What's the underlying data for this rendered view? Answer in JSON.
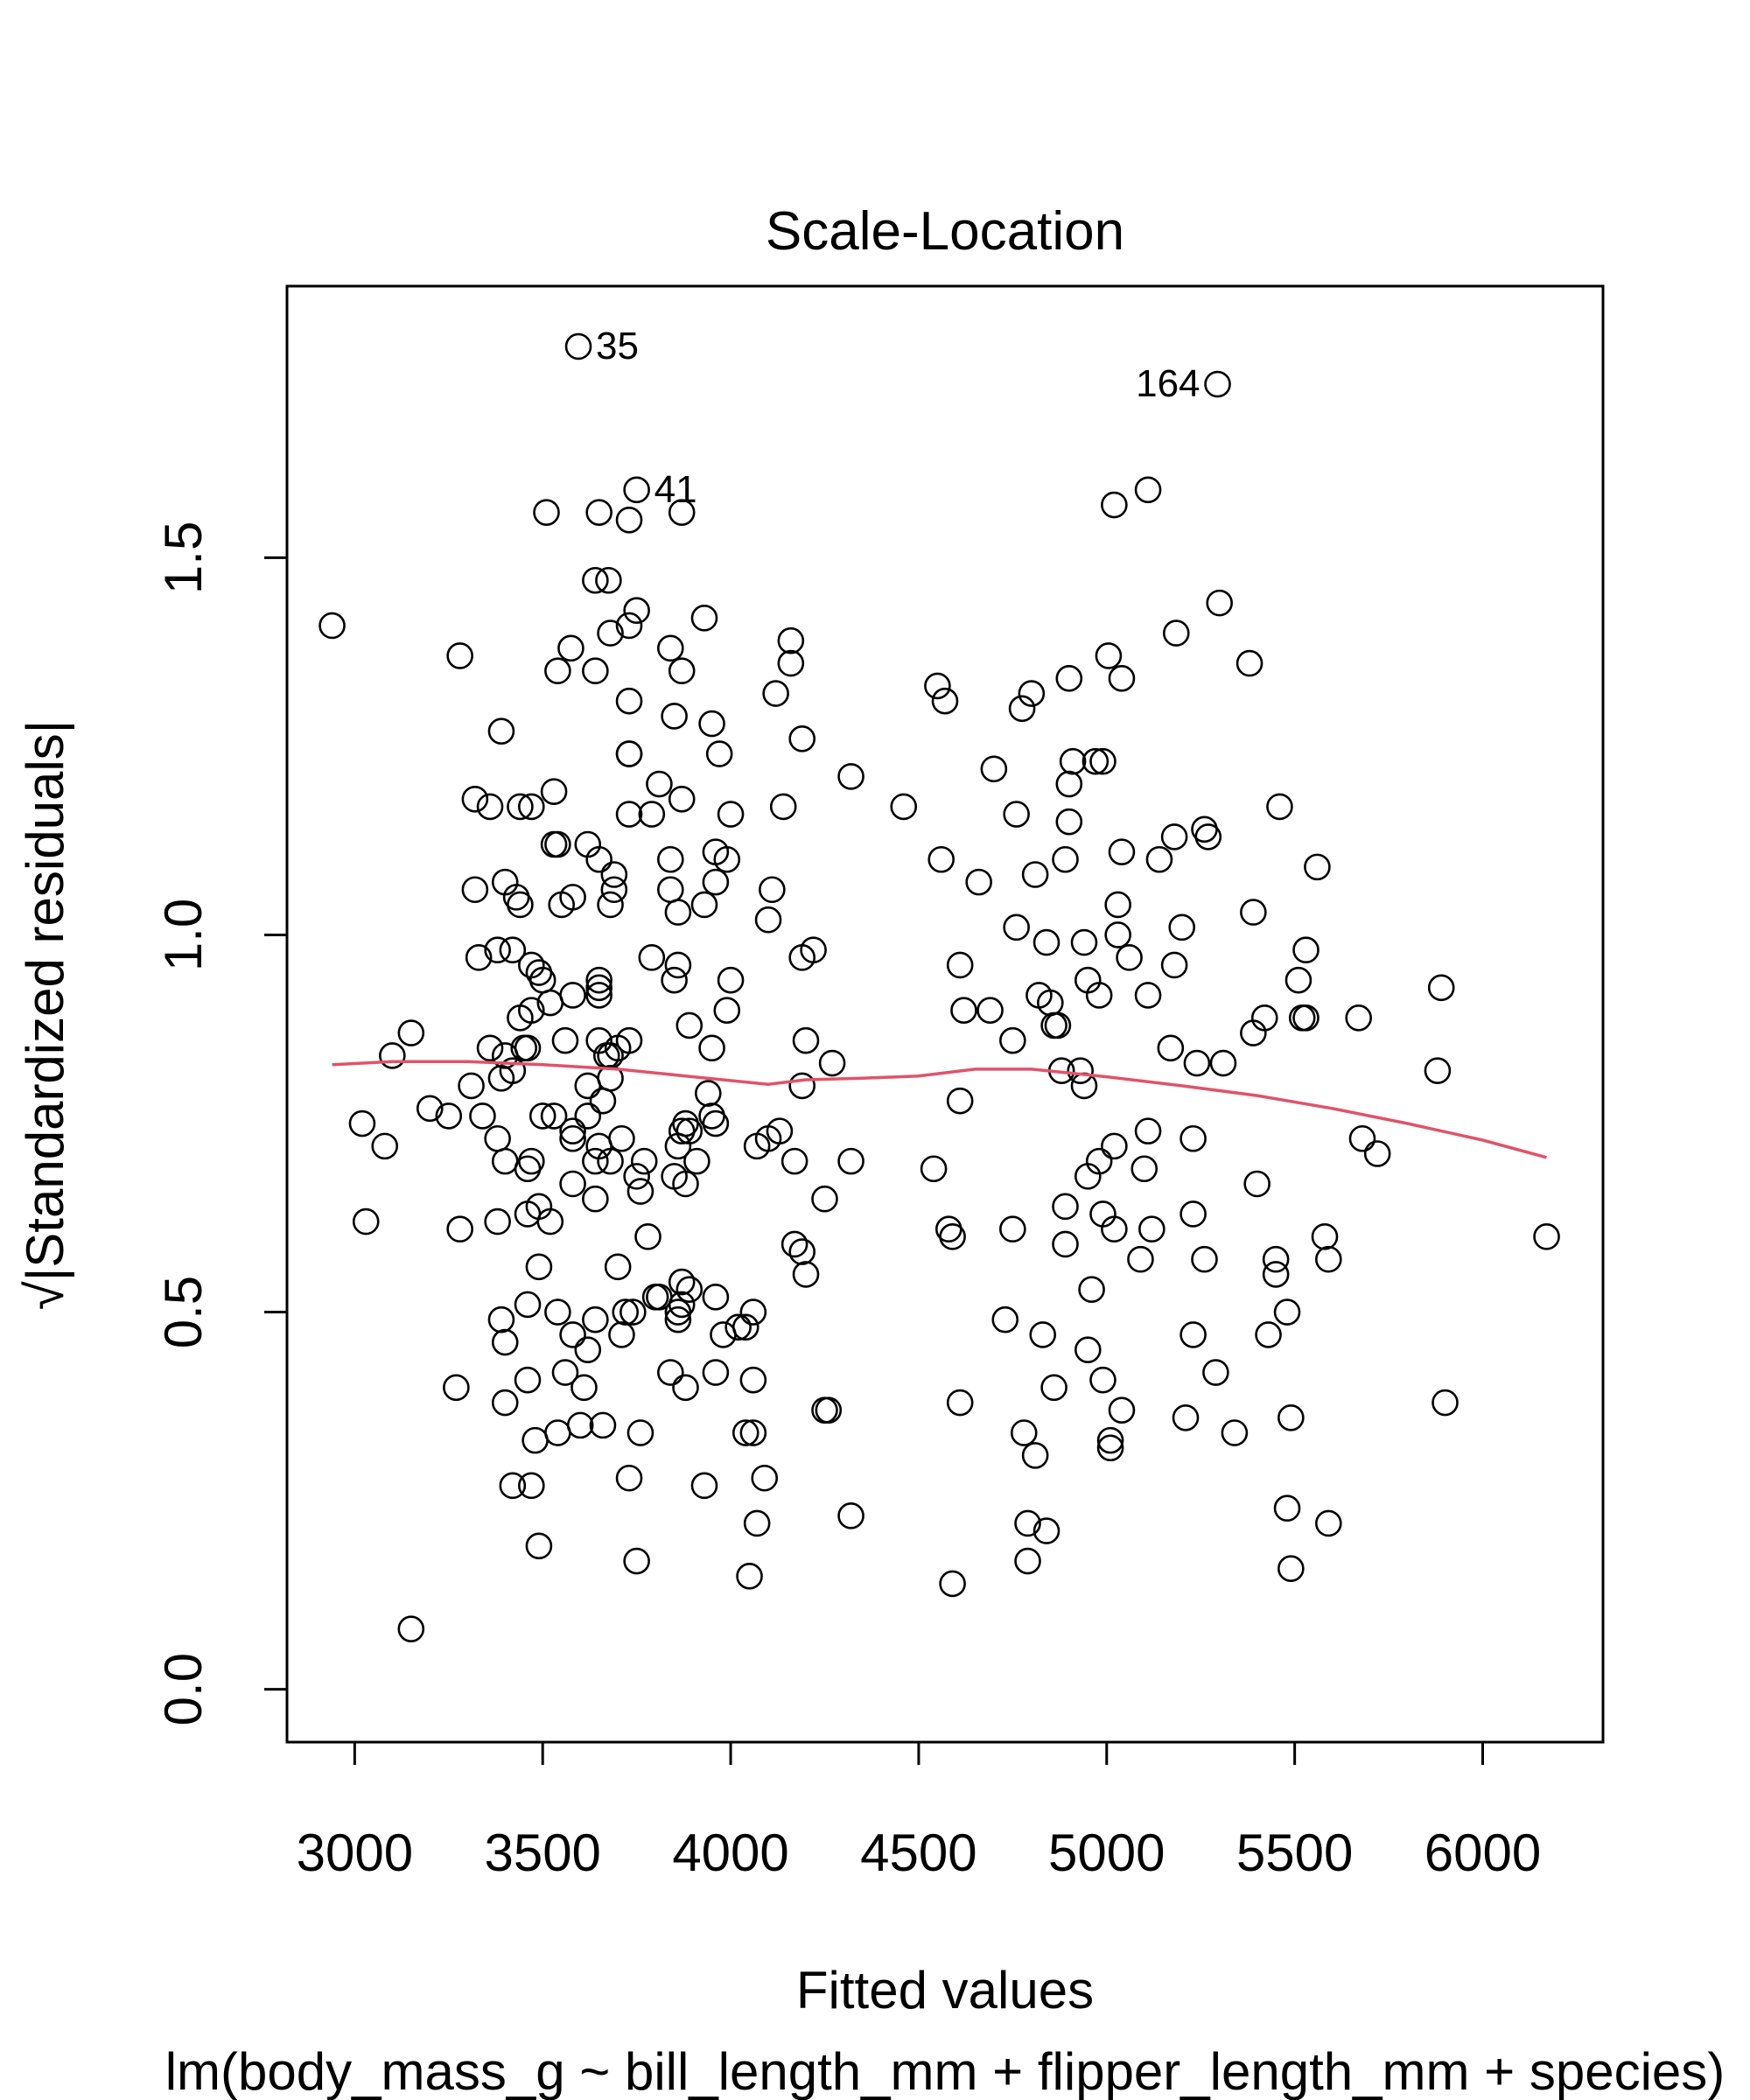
{
  "chart_data": {
    "type": "scatter",
    "title": "Scale-Location",
    "xlabel": "Fitted values",
    "ylabel": "√|Standardized residuals|",
    "subtitle": "lm(body_mass_g ~ bill_length_mm + flipper_length_mm + species)",
    "xlim": [
      2820,
      6320
    ],
    "ylim": [
      -0.07,
      1.86
    ],
    "xticks": [
      3000,
      3500,
      4000,
      4500,
      5000,
      5500,
      6000
    ],
    "yticks": [
      0.0,
      0.5,
      1.0,
      1.5
    ],
    "xtick_labels": [
      "3000",
      "3500",
      "4000",
      "4500",
      "5000",
      "5500",
      "6000"
    ],
    "ytick_labels": [
      "0.0",
      "0.5",
      "1.0",
      "1.5"
    ],
    "grid": false,
    "colors": {
      "points": "#000000",
      "smooth": "#DF536B"
    },
    "annotations": [
      {
        "label": "35",
        "x": 3595,
        "y": 1.78,
        "side": "right"
      },
      {
        "label": "164",
        "x": 5295,
        "y": 1.73,
        "side": "left"
      },
      {
        "label": "41",
        "x": 3750,
        "y": 1.59,
        "side": "right"
      }
    ],
    "smooth": [
      [
        2940,
        0.828
      ],
      [
        3100,
        0.832
      ],
      [
        3300,
        0.832
      ],
      [
        3500,
        0.828
      ],
      [
        3700,
        0.822
      ],
      [
        3900,
        0.812
      ],
      [
        4100,
        0.802
      ],
      [
        4200,
        0.808
      ],
      [
        4350,
        0.81
      ],
      [
        4500,
        0.813
      ],
      [
        4650,
        0.822
      ],
      [
        4800,
        0.822
      ],
      [
        5000,
        0.812
      ],
      [
        5200,
        0.8
      ],
      [
        5400,
        0.787
      ],
      [
        5600,
        0.77
      ],
      [
        5800,
        0.75
      ],
      [
        6000,
        0.728
      ],
      [
        6170,
        0.705
      ]
    ],
    "points": [
      [
        3595,
        1.78
      ],
      [
        5295,
        1.73
      ],
      [
        3750,
        1.59
      ],
      [
        5110,
        1.59
      ],
      [
        3510,
        1.56
      ],
      [
        3650,
        1.56
      ],
      [
        3730,
        1.55
      ],
      [
        3870,
        1.56
      ],
      [
        5020,
        1.57
      ],
      [
        2940,
        1.41
      ],
      [
        3640,
        1.47
      ],
      [
        3675,
        1.47
      ],
      [
        3750,
        1.43
      ],
      [
        3730,
        1.41
      ],
      [
        3680,
        1.4
      ],
      [
        3930,
        1.42
      ],
      [
        5300,
        1.44
      ],
      [
        5185,
        1.4
      ],
      [
        3280,
        1.37
      ],
      [
        3540,
        1.35
      ],
      [
        3640,
        1.35
      ],
      [
        3575,
        1.38
      ],
      [
        3840,
        1.38
      ],
      [
        3870,
        1.35
      ],
      [
        4160,
        1.39
      ],
      [
        4160,
        1.36
      ],
      [
        5005,
        1.37
      ],
      [
        5380,
        1.36
      ],
      [
        4550,
        1.33
      ],
      [
        4570,
        1.31
      ],
      [
        4800,
        1.32
      ],
      [
        4775,
        1.3
      ],
      [
        4900,
        1.34
      ],
      [
        5040,
        1.34
      ],
      [
        3730,
        1.31
      ],
      [
        3850,
        1.29
      ],
      [
        3950,
        1.28
      ],
      [
        4120,
        1.32
      ],
      [
        3390,
        1.27
      ],
      [
        3730,
        1.24
      ],
      [
        3730,
        1.24
      ],
      [
        3970,
        1.24
      ],
      [
        4190,
        1.26
      ],
      [
        4320,
        1.21
      ],
      [
        4700,
        1.22
      ],
      [
        4900,
        1.2
      ],
      [
        4910,
        1.23
      ],
      [
        4970,
        1.23
      ],
      [
        4990,
        1.23
      ],
      [
        3320,
        1.18
      ],
      [
        3360,
        1.17
      ],
      [
        3440,
        1.17
      ],
      [
        3470,
        1.17
      ],
      [
        3530,
        1.19
      ],
      [
        3730,
        1.16
      ],
      [
        3790,
        1.16
      ],
      [
        3810,
        1.2
      ],
      [
        3870,
        1.18
      ],
      [
        4000,
        1.16
      ],
      [
        4140,
        1.17
      ],
      [
        4460,
        1.17
      ],
      [
        4760,
        1.16
      ],
      [
        4900,
        1.15
      ],
      [
        5460,
        1.17
      ],
      [
        3530,
        1.12
      ],
      [
        3540,
        1.12
      ],
      [
        3620,
        1.12
      ],
      [
        3650,
        1.1
      ],
      [
        3690,
        1.08
      ],
      [
        3840,
        1.1
      ],
      [
        3960,
        1.11
      ],
      [
        3990,
        1.1
      ],
      [
        4560,
        1.1
      ],
      [
        4810,
        1.08
      ],
      [
        4890,
        1.1
      ],
      [
        5040,
        1.11
      ],
      [
        5140,
        1.1
      ],
      [
        5180,
        1.13
      ],
      [
        5260,
        1.14
      ],
      [
        5270,
        1.13
      ],
      [
        5560,
        1.09
      ],
      [
        3320,
        1.06
      ],
      [
        3400,
        1.07
      ],
      [
        3430,
        1.05
      ],
      [
        3440,
        1.04
      ],
      [
        3550,
        1.04
      ],
      [
        3580,
        1.05
      ],
      [
        3690,
        1.06
      ],
      [
        3680,
        1.04
      ],
      [
        3840,
        1.06
      ],
      [
        3860,
        1.03
      ],
      [
        3930,
        1.04
      ],
      [
        3960,
        1.07
      ],
      [
        4110,
        1.06
      ],
      [
        4100,
        1.02
      ],
      [
        4660,
        1.07
      ],
      [
        4760,
        1.01
      ],
      [
        5030,
        1.04
      ],
      [
        5200,
        1.01
      ],
      [
        5390,
        1.03
      ],
      [
        3330,
        0.97
      ],
      [
        3380,
        0.98
      ],
      [
        3420,
        0.98
      ],
      [
        3470,
        0.96
      ],
      [
        3490,
        0.95
      ],
      [
        3500,
        0.94
      ],
      [
        3650,
        0.94
      ],
      [
        3650,
        0.92
      ],
      [
        3650,
        0.93
      ],
      [
        3790,
        0.97
      ],
      [
        3860,
        0.96
      ],
      [
        3850,
        0.94
      ],
      [
        4000,
        0.94
      ],
      [
        4190,
        0.97
      ],
      [
        4220,
        0.98
      ],
      [
        4610,
        0.96
      ],
      [
        4840,
        0.99
      ],
      [
        4940,
        0.99
      ],
      [
        5030,
        1.0
      ],
      [
        5060,
        0.97
      ],
      [
        5180,
        0.96
      ],
      [
        5530,
        0.98
      ],
      [
        3440,
        0.89
      ],
      [
        3470,
        0.9
      ],
      [
        3520,
        0.91
      ],
      [
        3580,
        0.92
      ],
      [
        3890,
        0.88
      ],
      [
        3990,
        0.9
      ],
      [
        4620,
        0.9
      ],
      [
        4690,
        0.9
      ],
      [
        4820,
        0.92
      ],
      [
        4850,
        0.91
      ],
      [
        4860,
        0.88
      ],
      [
        4870,
        0.88
      ],
      [
        4950,
        0.94
      ],
      [
        4980,
        0.92
      ],
      [
        5110,
        0.92
      ],
      [
        5420,
        0.89
      ],
      [
        5510,
        0.94
      ],
      [
        5520,
        0.89
      ],
      [
        5530,
        0.89
      ],
      [
        5670,
        0.89
      ],
      [
        5890,
        0.93
      ],
      [
        3100,
        0.84
      ],
      [
        3150,
        0.87
      ],
      [
        3360,
        0.85
      ],
      [
        3400,
        0.84
      ],
      [
        3450,
        0.85
      ],
      [
        3460,
        0.85
      ],
      [
        3560,
        0.86
      ],
      [
        3650,
        0.86
      ],
      [
        3670,
        0.84
      ],
      [
        3680,
        0.84
      ],
      [
        3700,
        0.85
      ],
      [
        3730,
        0.86
      ],
      [
        3950,
        0.85
      ],
      [
        4200,
        0.86
      ],
      [
        4270,
        0.83
      ],
      [
        4750,
        0.86
      ],
      [
        4880,
        0.82
      ],
      [
        4930,
        0.82
      ],
      [
        5170,
        0.85
      ],
      [
        5240,
        0.83
      ],
      [
        5310,
        0.83
      ],
      [
        5390,
        0.87
      ],
      [
        5880,
        0.82
      ],
      [
        3310,
        0.8
      ],
      [
        3390,
        0.81
      ],
      [
        3420,
        0.82
      ],
      [
        3620,
        0.8
      ],
      [
        3660,
        0.78
      ],
      [
        3680,
        0.81
      ],
      [
        3940,
        0.79
      ],
      [
        4190,
        0.8
      ],
      [
        4610,
        0.78
      ],
      [
        4940,
        0.8
      ],
      [
        3020,
        0.75
      ],
      [
        3080,
        0.72
      ],
      [
        3200,
        0.77
      ],
      [
        3250,
        0.76
      ],
      [
        3340,
        0.76
      ],
      [
        3380,
        0.73
      ],
      [
        3500,
        0.76
      ],
      [
        3530,
        0.76
      ],
      [
        3580,
        0.74
      ],
      [
        3580,
        0.73
      ],
      [
        3620,
        0.76
      ],
      [
        3650,
        0.72
      ],
      [
        3710,
        0.73
      ],
      [
        3860,
        0.72
      ],
      [
        3870,
        0.74
      ],
      [
        3880,
        0.75
      ],
      [
        3890,
        0.74
      ],
      [
        3950,
        0.76
      ],
      [
        3960,
        0.75
      ],
      [
        4070,
        0.72
      ],
      [
        4100,
        0.73
      ],
      [
        4130,
        0.74
      ],
      [
        5020,
        0.72
      ],
      [
        5110,
        0.74
      ],
      [
        5230,
        0.73
      ],
      [
        5680,
        0.73
      ],
      [
        3400,
        0.7
      ],
      [
        3460,
        0.69
      ],
      [
        3470,
        0.7
      ],
      [
        3640,
        0.7
      ],
      [
        3680,
        0.7
      ],
      [
        3750,
        0.68
      ],
      [
        3770,
        0.7
      ],
      [
        3850,
        0.68
      ],
      [
        3880,
        0.67
      ],
      [
        3910,
        0.7
      ],
      [
        4170,
        0.7
      ],
      [
        4320,
        0.7
      ],
      [
        4540,
        0.69
      ],
      [
        4950,
        0.68
      ],
      [
        4980,
        0.7
      ],
      [
        5100,
        0.69
      ],
      [
        5720,
        0.71
      ],
      [
        3030,
        0.62
      ],
      [
        3280,
        0.61
      ],
      [
        3380,
        0.62
      ],
      [
        3460,
        0.63
      ],
      [
        3490,
        0.64
      ],
      [
        3520,
        0.62
      ],
      [
        3580,
        0.67
      ],
      [
        3640,
        0.65
      ],
      [
        3760,
        0.66
      ],
      [
        3780,
        0.6
      ],
      [
        4170,
        0.59
      ],
      [
        4190,
        0.58
      ],
      [
        4250,
        0.65
      ],
      [
        4580,
        0.61
      ],
      [
        4590,
        0.6
      ],
      [
        4750,
        0.61
      ],
      [
        4890,
        0.64
      ],
      [
        4890,
        0.59
      ],
      [
        4990,
        0.63
      ],
      [
        5020,
        0.61
      ],
      [
        5090,
        0.57
      ],
      [
        5120,
        0.61
      ],
      [
        5230,
        0.63
      ],
      [
        5260,
        0.57
      ],
      [
        5400,
        0.67
      ],
      [
        5580,
        0.6
      ],
      [
        5590,
        0.57
      ],
      [
        6170,
        0.6
      ],
      [
        3490,
        0.56
      ],
      [
        3700,
        0.56
      ],
      [
        3870,
        0.54
      ],
      [
        3390,
        0.49
      ],
      [
        3400,
        0.46
      ],
      [
        3460,
        0.51
      ],
      [
        3540,
        0.5
      ],
      [
        3580,
        0.47
      ],
      [
        3620,
        0.45
      ],
      [
        3640,
        0.49
      ],
      [
        3720,
        0.5
      ],
      [
        3740,
        0.5
      ],
      [
        3710,
        0.47
      ],
      [
        3800,
        0.52
      ],
      [
        3810,
        0.52
      ],
      [
        3860,
        0.49
      ],
      [
        3860,
        0.5
      ],
      [
        3870,
        0.51
      ],
      [
        3890,
        0.53
      ],
      [
        3960,
        0.52
      ],
      [
        3980,
        0.47
      ],
      [
        4020,
        0.48
      ],
      [
        4040,
        0.48
      ],
      [
        4060,
        0.5
      ],
      [
        4200,
        0.55
      ],
      [
        4730,
        0.49
      ],
      [
        4830,
        0.47
      ],
      [
        4960,
        0.53
      ],
      [
        4950,
        0.45
      ],
      [
        5230,
        0.47
      ],
      [
        5430,
        0.47
      ],
      [
        5450,
        0.55
      ],
      [
        5450,
        0.57
      ],
      [
        5480,
        0.5
      ],
      [
        3270,
        0.4
      ],
      [
        3400,
        0.38
      ],
      [
        3460,
        0.41
      ],
      [
        3560,
        0.42
      ],
      [
        3610,
        0.4
      ],
      [
        3840,
        0.42
      ],
      [
        3880,
        0.4
      ],
      [
        3960,
        0.42
      ],
      [
        4060,
        0.41
      ],
      [
        4250,
        0.37
      ],
      [
        4260,
        0.37
      ],
      [
        4610,
        0.38
      ],
      [
        4860,
        0.4
      ],
      [
        4990,
        0.41
      ],
      [
        5040,
        0.37
      ],
      [
        5210,
        0.36
      ],
      [
        5290,
        0.42
      ],
      [
        5490,
        0.36
      ],
      [
        5900,
        0.38
      ],
      [
        3480,
        0.33
      ],
      [
        3540,
        0.34
      ],
      [
        3600,
        0.35
      ],
      [
        3660,
        0.35
      ],
      [
        3760,
        0.34
      ],
      [
        4040,
        0.34
      ],
      [
        4060,
        0.34
      ],
      [
        4090,
        0.28
      ],
      [
        4320,
        0.23
      ],
      [
        4780,
        0.34
      ],
      [
        4810,
        0.31
      ],
      [
        5010,
        0.32
      ],
      [
        5010,
        0.33
      ],
      [
        5340,
        0.34
      ],
      [
        3420,
        0.27
      ],
      [
        3470,
        0.27
      ],
      [
        3730,
        0.28
      ],
      [
        3930,
        0.27
      ],
      [
        3490,
        0.19
      ],
      [
        3750,
        0.17
      ],
      [
        4070,
        0.22
      ],
      [
        4050,
        0.15
      ],
      [
        4590,
        0.14
      ],
      [
        4790,
        0.22
      ],
      [
        4790,
        0.17
      ],
      [
        4840,
        0.21
      ],
      [
        5480,
        0.24
      ],
      [
        5490,
        0.16
      ],
      [
        5590,
        0.22
      ],
      [
        3150,
        0.08
      ]
    ]
  }
}
